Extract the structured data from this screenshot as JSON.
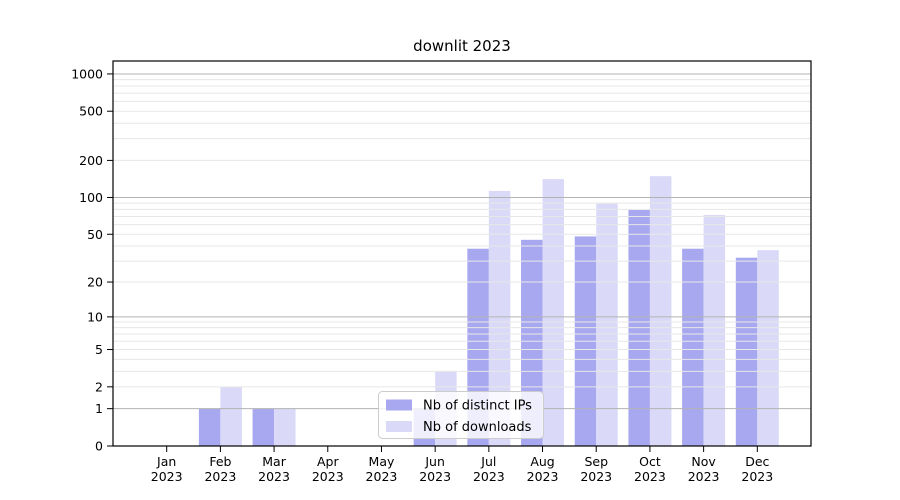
{
  "title": "downlit 2023",
  "chart_data": {
    "type": "bar",
    "title": "downlit 2023",
    "categories": [
      "Jan",
      "Feb",
      "Mar",
      "Apr",
      "May",
      "Jun",
      "Jul",
      "Aug",
      "Sep",
      "Oct",
      "Nov",
      "Dec"
    ],
    "x_year": "2023",
    "series": [
      {
        "name": "Nb of distinct IPs",
        "color": "#a8a8f0",
        "values": [
          0,
          1,
          1,
          0,
          0,
          1,
          38,
          45,
          48,
          79,
          38,
          32
        ]
      },
      {
        "name": "Nb of downloads",
        "color": "#dadaf8",
        "values": [
          0,
          2,
          1,
          0,
          0,
          3,
          113,
          141,
          89,
          149,
          72,
          37
        ]
      }
    ],
    "yscale": "log10(1+y)",
    "yticks": [
      0,
      1,
      2,
      5,
      10,
      20,
      50,
      100,
      200,
      500,
      1000
    ],
    "ylim": [
      0,
      1270
    ],
    "xlabel": "",
    "ylabel": "",
    "grid": "horizontal major and log-minor gridlines",
    "legend_position": "inside lower-center",
    "colors": {
      "major_grid": "#b3b3b3",
      "minor_grid": "#e7e7e7",
      "axis": "#000000",
      "text": "#000000",
      "background": "#ffffff",
      "legend_border": "#cccccc"
    }
  }
}
